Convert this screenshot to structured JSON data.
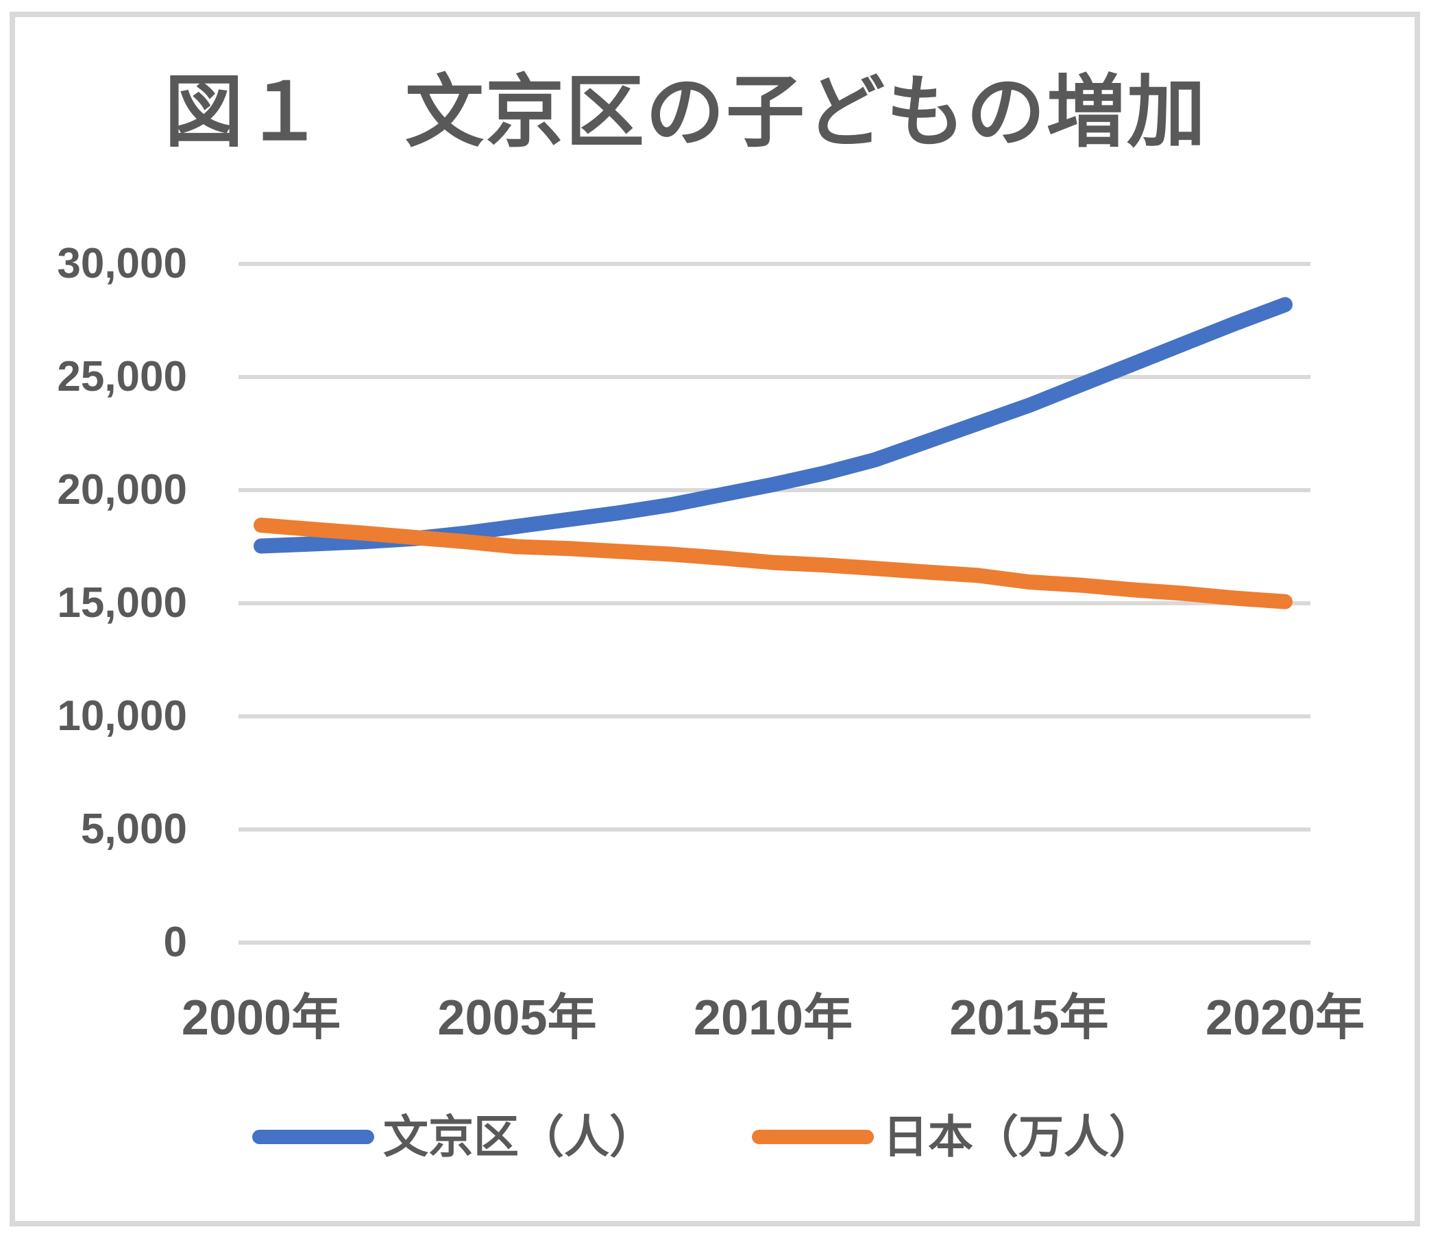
{
  "title": "図１　文京区の子どもの増加",
  "colors": {
    "series_bunkyo": "#4472C4",
    "series_japan": "#ED7D31",
    "gridline": "#D9D9D9",
    "frame_border": "#D9D9D9",
    "text": "#595959",
    "background": "#FFFFFF"
  },
  "legend": {
    "items": [
      {
        "label": "文京区（人）",
        "color": "#4472C4"
      },
      {
        "label": "日本（万人）",
        "color": "#ED7D31"
      }
    ]
  },
  "chart_data": {
    "type": "line",
    "title": "図１　文京区の子どもの増加",
    "x": [
      2000,
      2001,
      2002,
      2003,
      2004,
      2005,
      2006,
      2007,
      2008,
      2009,
      2010,
      2011,
      2012,
      2013,
      2014,
      2015,
      2016,
      2017,
      2018,
      2019,
      2020
    ],
    "x_tick_labels": [
      "2000年",
      "2005年",
      "2010年",
      "2015年",
      "2020年"
    ],
    "y_tick_labels": [
      "0",
      "5,000",
      "10,000",
      "15,000",
      "20,000",
      "25,000",
      "30,000"
    ],
    "ylim": [
      0,
      30000
    ],
    "y_tick_step": 5000,
    "grid": "horizontal",
    "legend_position": "bottom",
    "series": [
      {
        "name": "文京区（人）",
        "color": "#4472C4",
        "values": [
          17530,
          17620,
          17720,
          17860,
          18100,
          18400,
          18700,
          19000,
          19350,
          19800,
          20250,
          20750,
          21350,
          22150,
          22950,
          23750,
          24650,
          25550,
          26450,
          27350,
          28200
        ]
      },
      {
        "name": "日本（万人）",
        "color": "#ED7D31",
        "values": [
          18450,
          18270,
          18100,
          17910,
          17720,
          17500,
          17420,
          17290,
          17170,
          17000,
          16800,
          16690,
          16540,
          16380,
          16230,
          15940,
          15800,
          15600,
          15440,
          15230,
          15070
        ]
      }
    ]
  }
}
